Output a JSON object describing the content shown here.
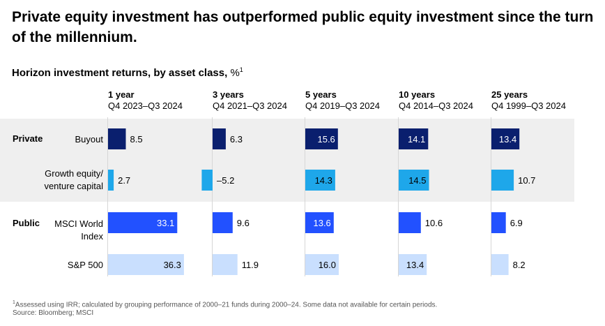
{
  "title": "Private equity investment has outperformed public equity investment since the turn of the millennium.",
  "subtitle": "Horizon investment returns, by asset class,",
  "subtitle_unit": "%",
  "subtitle_footnote_marker": "1",
  "colors": {
    "buyout": "#0a1f6e",
    "growth": "#1ea7ea",
    "msci": "#2251ff",
    "sp500": "#c9dffe",
    "band": "#efefef"
  },
  "chart_data": {
    "type": "bar",
    "orientation": "horizontal",
    "groups": [
      {
        "name": "Private",
        "rows": [
          "Buyout",
          "Growth equity/ venture capital"
        ]
      },
      {
        "name": "Public",
        "rows": [
          "MSCI World Index",
          "S&P 500"
        ]
      }
    ],
    "categories": [
      {
        "label": "1 year",
        "period": "Q4 2023–Q3 2024"
      },
      {
        "label": "3 years",
        "period": "Q4 2021–Q3 2024"
      },
      {
        "label": "5 years",
        "period": "Q4 2019–Q3 2024"
      },
      {
        "label": "10 years",
        "period": "Q4 2014–Q3 2024"
      },
      {
        "label": "25 years",
        "period": "Q4 1999–Q3 2024"
      }
    ],
    "series": [
      {
        "name": "Buyout",
        "color": "#0a1f6e",
        "label_color": "#ffffff",
        "values": [
          8.5,
          6.3,
          15.6,
          14.1,
          13.4
        ],
        "labels": [
          "8.5",
          "6.3",
          "15.6",
          "14.1",
          "13.4"
        ]
      },
      {
        "name": "Growth equity/ venture capital",
        "color": "#1ea7ea",
        "label_color": "#000000",
        "values": [
          2.7,
          -5.2,
          14.3,
          14.5,
          10.7
        ],
        "labels": [
          "2.7",
          "–5.2",
          "14.3",
          "14.5",
          "10.7"
        ]
      },
      {
        "name": "MSCI World Index",
        "color": "#2251ff",
        "label_color": "#ffffff",
        "values": [
          33.1,
          9.6,
          13.6,
          10.6,
          6.9
        ],
        "labels": [
          "33.1",
          "9.6",
          "13.6",
          "10.6",
          "6.9"
        ]
      },
      {
        "name": "S&P 500",
        "color": "#c9dffe",
        "label_color": "#000000",
        "values": [
          36.3,
          11.9,
          16.0,
          13.4,
          8.2
        ],
        "labels": [
          "36.3",
          "11.9",
          "16.0",
          "13.4",
          "8.2"
        ]
      }
    ],
    "grid": false,
    "legend": "none"
  },
  "footnote": {
    "marker": "1",
    "text": "Assessed using IRR; calculated by grouping performance of 2000–21 funds during 2000–24. Some data not available for certain periods.",
    "source": "Source: Bloomberg; MSCI"
  }
}
